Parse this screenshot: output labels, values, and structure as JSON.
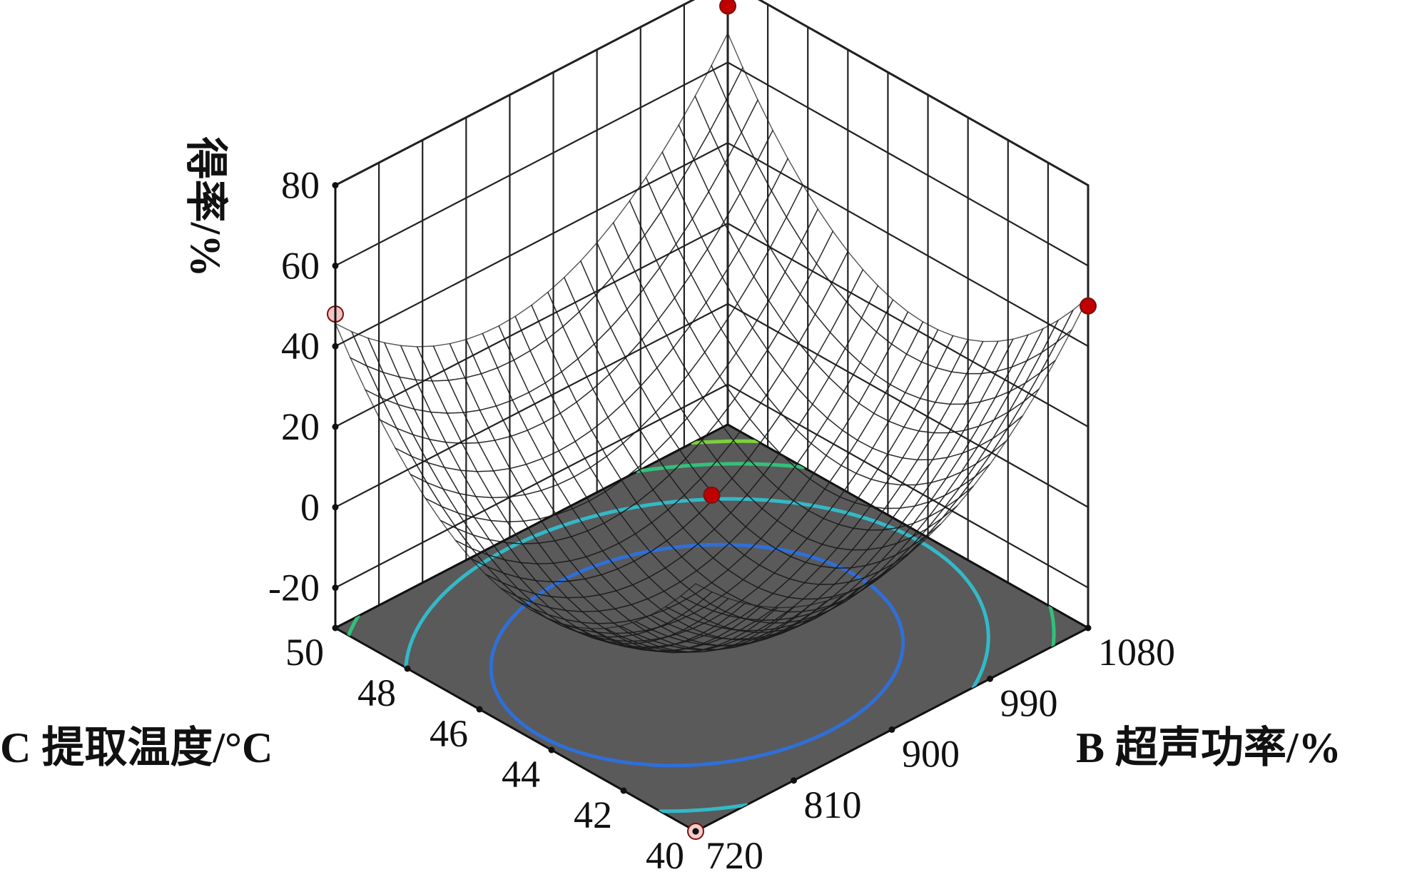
{
  "chart_data": {
    "type": "surface3d",
    "zlabel": "得率/%",
    "xlabel": "C 提取温度/°C",
    "ylabel": "B 超声功率/%",
    "x_ticks": [
      40,
      42,
      44,
      46,
      48,
      50
    ],
    "y_ticks": [
      720,
      810,
      900,
      990,
      1080
    ],
    "z_ticks": [
      -20,
      0,
      20,
      40,
      60,
      80
    ],
    "xlim": [
      40,
      50
    ],
    "ylim": [
      720,
      1080
    ],
    "zlim": [
      -30,
      80
    ],
    "surface": {
      "model": "quadratic",
      "minimum": {
        "x": 44.5,
        "y": 870,
        "z": -20
      },
      "corner_values": [
        {
          "x": 40,
          "y": 720,
          "z": 20
        },
        {
          "x": 50,
          "y": 720,
          "z": 48
        },
        {
          "x": 40,
          "y": 1080,
          "z": 50
        },
        {
          "x": 50,
          "y": 1080,
          "z": 74
        }
      ]
    },
    "design_points": [
      {
        "x": 50,
        "y": 720,
        "z": 48,
        "color": "#f3c3c3"
      },
      {
        "x": 50,
        "y": 1080,
        "z": 74,
        "color": "#c00000"
      },
      {
        "x": 40,
        "y": 1080,
        "z": 50,
        "color": "#c00000"
      },
      {
        "x": 45,
        "y": 900,
        "z": 3,
        "color": "#c00000"
      },
      {
        "x": 40,
        "y": 720,
        "z": -30,
        "color": "#f6cccc"
      }
    ],
    "contour_colors": [
      "#2f6fd8",
      "#33b9c8",
      "#33c07a",
      "#7ad23a",
      "#d8cf2c"
    ],
    "floor_color": "#5a5a5a",
    "grid": true
  }
}
